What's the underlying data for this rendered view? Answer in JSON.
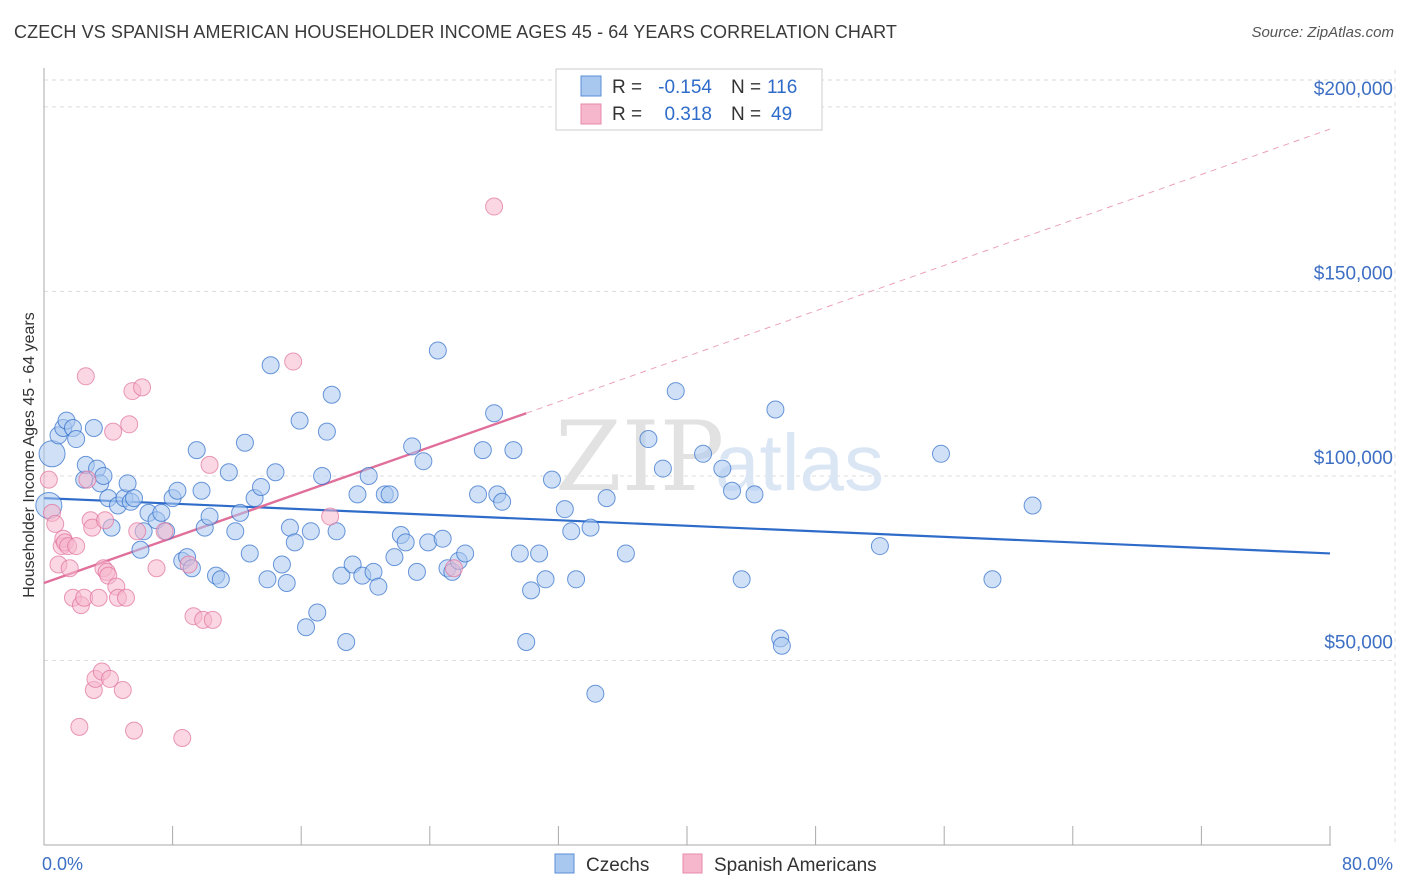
{
  "title": "CZECH VS SPANISH AMERICAN HOUSEHOLDER INCOME AGES 45 - 64 YEARS CORRELATION CHART",
  "source": "Source: ZipAtlas.com",
  "watermark": {
    "zip": "ZIP",
    "atlas": "atlas"
  },
  "legend": {
    "r_label": "R =",
    "n_label": "N =",
    "rows": [
      {
        "r": "-0.154",
        "n": "116"
      },
      {
        "r": "0.318",
        "n": "49"
      }
    ]
  },
  "chart_data": {
    "type": "scatter",
    "ylabel": "Householder Income Ages 45 - 64 years",
    "xlabel": "",
    "xlim": [
      0,
      80
    ],
    "ylim": [
      0,
      210000
    ],
    "x_tick_labels": [
      "0.0%",
      "80.0%"
    ],
    "y_ticks": [
      50000,
      100000,
      150000,
      200000
    ],
    "y_tick_labels": [
      "$50,000",
      "$100,000",
      "$150,000",
      "$200,000"
    ],
    "grid": true,
    "legend_placement": "top-center",
    "colors": {
      "czechs": "#2f6cc9",
      "spanish": "#e0709b",
      "czechs_fill": "#a9c8f0",
      "spanish_fill": "#f6b6cc"
    },
    "series": [
      {
        "name": "Czechs",
        "trend": {
          "x": [
            0,
            80
          ],
          "y": [
            94000,
            79000
          ]
        },
        "points": [
          [
            0.3,
            92000
          ],
          [
            0.5,
            106000
          ],
          [
            0.9,
            111000
          ],
          [
            1.2,
            113000
          ],
          [
            1.4,
            115000
          ],
          [
            1.8,
            113000
          ],
          [
            2.0,
            110000
          ],
          [
            2.5,
            99000
          ],
          [
            2.6,
            103000
          ],
          [
            3.1,
            113000
          ],
          [
            3.3,
            102000
          ],
          [
            3.5,
            98000
          ],
          [
            3.7,
            100000
          ],
          [
            4.0,
            94000
          ],
          [
            4.2,
            86000
          ],
          [
            4.6,
            92000
          ],
          [
            5.0,
            94000
          ],
          [
            5.2,
            98000
          ],
          [
            5.4,
            93000
          ],
          [
            5.6,
            94000
          ],
          [
            6.0,
            80000
          ],
          [
            6.2,
            85000
          ],
          [
            6.5,
            90000
          ],
          [
            7.0,
            88000
          ],
          [
            7.3,
            90000
          ],
          [
            7.6,
            85000
          ],
          [
            8.0,
            94000
          ],
          [
            8.3,
            96000
          ],
          [
            8.6,
            77000
          ],
          [
            8.9,
            78000
          ],
          [
            9.2,
            75000
          ],
          [
            9.5,
            107000
          ],
          [
            9.8,
            96000
          ],
          [
            10.0,
            86000
          ],
          [
            10.3,
            89000
          ],
          [
            10.7,
            73000
          ],
          [
            11.0,
            72000
          ],
          [
            11.5,
            101000
          ],
          [
            11.9,
            85000
          ],
          [
            12.2,
            90000
          ],
          [
            12.5,
            109000
          ],
          [
            12.8,
            79000
          ],
          [
            13.1,
            94000
          ],
          [
            13.5,
            97000
          ],
          [
            13.9,
            72000
          ],
          [
            14.1,
            130000
          ],
          [
            14.4,
            101000
          ],
          [
            14.8,
            76000
          ],
          [
            15.1,
            71000
          ],
          [
            15.3,
            86000
          ],
          [
            15.6,
            82000
          ],
          [
            15.9,
            115000
          ],
          [
            16.3,
            59000
          ],
          [
            16.6,
            85000
          ],
          [
            17.0,
            63000
          ],
          [
            17.3,
            100000
          ],
          [
            17.6,
            112000
          ],
          [
            17.9,
            122000
          ],
          [
            18.2,
            85000
          ],
          [
            18.5,
            73000
          ],
          [
            18.8,
            55000
          ],
          [
            19.2,
            76000
          ],
          [
            19.5,
            95000
          ],
          [
            19.8,
            73000
          ],
          [
            20.2,
            100000
          ],
          [
            20.5,
            74000
          ],
          [
            20.8,
            70000
          ],
          [
            21.2,
            95000
          ],
          [
            21.5,
            95000
          ],
          [
            21.8,
            78000
          ],
          [
            22.2,
            84000
          ],
          [
            22.5,
            82000
          ],
          [
            22.9,
            108000
          ],
          [
            23.2,
            74000
          ],
          [
            23.6,
            104000
          ],
          [
            23.9,
            82000
          ],
          [
            24.5,
            134000
          ],
          [
            24.8,
            83000
          ],
          [
            25.1,
            75000
          ],
          [
            25.4,
            74000
          ],
          [
            25.8,
            77000
          ],
          [
            26.2,
            79000
          ],
          [
            27.0,
            95000
          ],
          [
            27.3,
            107000
          ],
          [
            28.0,
            117000
          ],
          [
            28.2,
            95000
          ],
          [
            28.5,
            93000
          ],
          [
            29.2,
            107000
          ],
          [
            29.6,
            79000
          ],
          [
            30.0,
            55000
          ],
          [
            30.3,
            69000
          ],
          [
            30.8,
            79000
          ],
          [
            31.2,
            72000
          ],
          [
            31.6,
            99000
          ],
          [
            32.4,
            91000
          ],
          [
            32.8,
            85000
          ],
          [
            33.1,
            72000
          ],
          [
            34.0,
            86000
          ],
          [
            34.3,
            41000
          ],
          [
            35.0,
            94000
          ],
          [
            36.2,
            79000
          ],
          [
            37.6,
            110000
          ],
          [
            38.5,
            102000
          ],
          [
            39.3,
            123000
          ],
          [
            41.0,
            106000
          ],
          [
            42.2,
            102000
          ],
          [
            42.8,
            96000
          ],
          [
            43.4,
            72000
          ],
          [
            44.2,
            95000
          ],
          [
            45.5,
            118000
          ],
          [
            45.8,
            56000
          ],
          [
            45.9,
            54000
          ],
          [
            52.0,
            81000
          ],
          [
            55.8,
            106000
          ],
          [
            59.0,
            72000
          ],
          [
            61.5,
            92000
          ]
        ]
      },
      {
        "name": "Spanish Americans",
        "trend": {
          "x": [
            0,
            30
          ],
          "y": [
            71000,
            117000
          ]
        },
        "trend_extended": {
          "x": [
            30,
            80
          ],
          "y": [
            117000,
            194000
          ]
        },
        "points": [
          [
            0.3,
            99000
          ],
          [
            0.5,
            90000
          ],
          [
            0.7,
            87000
          ],
          [
            0.9,
            76000
          ],
          [
            1.1,
            81000
          ],
          [
            1.2,
            83000
          ],
          [
            1.3,
            82000
          ],
          [
            1.5,
            81000
          ],
          [
            1.6,
            75000
          ],
          [
            1.8,
            67000
          ],
          [
            2.0,
            81000
          ],
          [
            2.2,
            32000
          ],
          [
            2.3,
            65000
          ],
          [
            2.5,
            67000
          ],
          [
            2.6,
            127000
          ],
          [
            2.7,
            99000
          ],
          [
            2.9,
            88000
          ],
          [
            3.0,
            86000
          ],
          [
            3.1,
            42000
          ],
          [
            3.2,
            45000
          ],
          [
            3.4,
            67000
          ],
          [
            3.6,
            47000
          ],
          [
            3.7,
            75000
          ],
          [
            3.8,
            88000
          ],
          [
            3.9,
            74000
          ],
          [
            4.0,
            73000
          ],
          [
            4.1,
            45000
          ],
          [
            4.3,
            112000
          ],
          [
            4.5,
            70000
          ],
          [
            4.6,
            67000
          ],
          [
            4.9,
            42000
          ],
          [
            5.1,
            67000
          ],
          [
            5.3,
            114000
          ],
          [
            5.5,
            123000
          ],
          [
            5.6,
            31000
          ],
          [
            5.8,
            85000
          ],
          [
            6.1,
            124000
          ],
          [
            7.0,
            75000
          ],
          [
            7.5,
            85000
          ],
          [
            8.6,
            29000
          ],
          [
            9.0,
            76000
          ],
          [
            9.3,
            62000
          ],
          [
            9.9,
            61000
          ],
          [
            10.3,
            103000
          ],
          [
            10.5,
            61000
          ],
          [
            15.5,
            131000
          ],
          [
            17.8,
            89000
          ],
          [
            25.5,
            75000
          ],
          [
            28.0,
            173000
          ]
        ]
      }
    ]
  }
}
